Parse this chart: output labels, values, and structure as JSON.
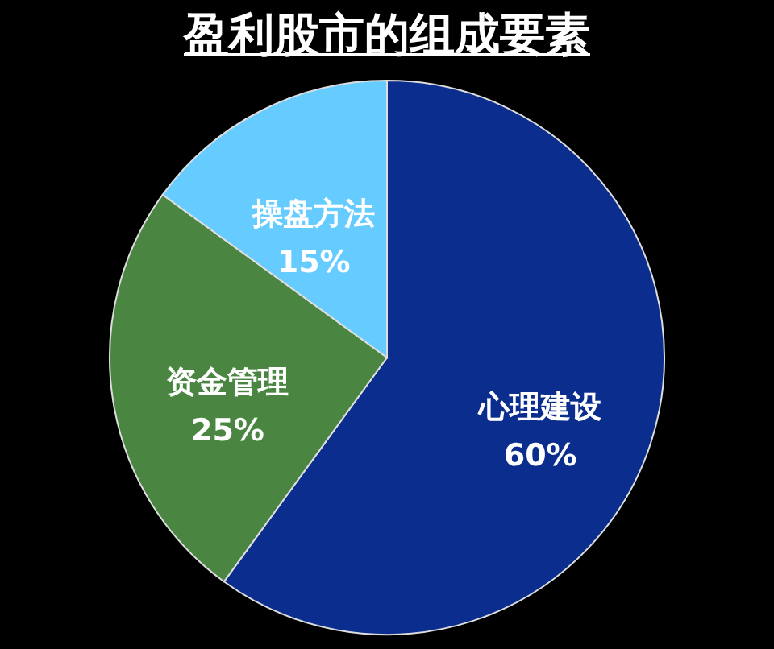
{
  "chart_data": {
    "type": "pie",
    "title": "盈利股市的组成要素",
    "categories": [
      "心理建设",
      "资金管理",
      "操盘方法"
    ],
    "values": [
      60,
      25,
      15
    ],
    "colors": [
      "#0b2e8e",
      "#4a8642",
      "#66ccff"
    ],
    "value_labels": [
      "60%",
      "25%",
      "15%"
    ]
  }
}
